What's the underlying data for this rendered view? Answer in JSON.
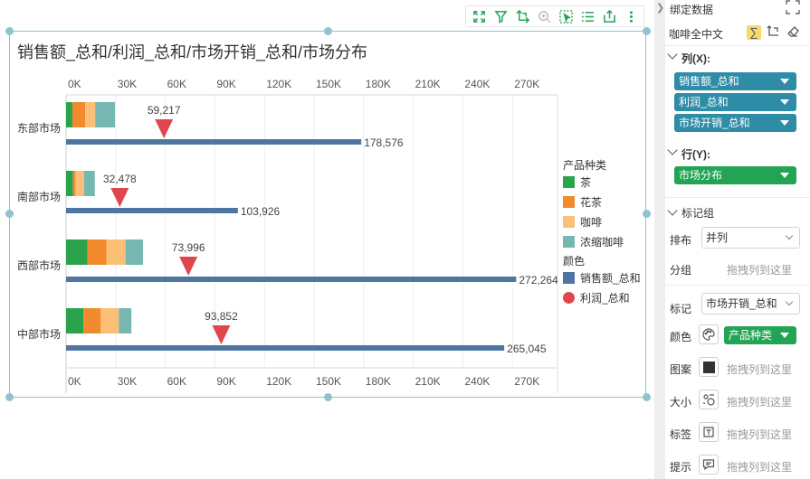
{
  "chart": {
    "title": "销售额_总和/利润_总和/市场开销_总和/市场分布",
    "legend_title_type": "产品种类",
    "legend_title_color": "颜色"
  },
  "chart_data": {
    "type": "bar",
    "orientation": "horizontal",
    "categories": [
      "东部市场",
      "南部市场",
      "西部市场",
      "中部市场"
    ],
    "x_ticks": [
      "0K",
      "30K",
      "60K",
      "90K",
      "120K",
      "150K",
      "180K",
      "210K",
      "240K",
      "270K"
    ],
    "xlim": [
      0,
      300000
    ],
    "grid": true,
    "legend_position": "right",
    "series": [
      {
        "name": "销售额_总和",
        "mark": "bar",
        "color": "#4e76a0",
        "values": [
          178576,
          103926,
          272264,
          265045
        ],
        "labels": [
          "178,576",
          "103,926",
          "272,264",
          "265,045"
        ]
      },
      {
        "name": "利润_总和",
        "mark": "triangle",
        "color": "#e0464e",
        "values": [
          59217,
          32478,
          73996,
          93852
        ],
        "labels": [
          "59,217",
          "32,478",
          "73,996",
          "93,852"
        ]
      }
    ],
    "stacked_series": {
      "field": "市场开销_总和",
      "segments": [
        {
          "name": "茶",
          "color": "#2ba24c",
          "values": [
            3800,
            4200,
            13000,
            10500
          ]
        },
        {
          "name": "花茶",
          "color": "#f08a2c",
          "values": [
            7800,
            1500,
            11500,
            10500
          ]
        },
        {
          "name": "咖啡",
          "color": "#fbbf78",
          "values": [
            6000,
            5200,
            11500,
            11000
          ]
        },
        {
          "name": "浓缩咖啡",
          "color": "#77b7b2",
          "values": [
            12000,
            6500,
            10500,
            7500
          ]
        }
      ]
    }
  },
  "toolbar": {
    "icons": [
      "fullscreen-icon",
      "filter-icon",
      "swap-axes-icon",
      "zoom-icon",
      "select-icon",
      "list-icon",
      "export-icon",
      "more-icon"
    ]
  },
  "panel": {
    "title": "绑定数据",
    "dataset": "咖啡全中文",
    "columns_label": "列(X):",
    "columns": [
      "销售额_总和",
      "利润_总和",
      "市场开销_总和"
    ],
    "rows_label": "行(Y):",
    "rows": [
      "市场分布"
    ],
    "mark_group_label": "标记组",
    "layout_label": "排布",
    "layout_value": "并列",
    "group_label": "分组",
    "drop_hint": "拖拽列到这里",
    "mark_label": "标记",
    "mark_value": "市场开销_总和",
    "color_label": "颜色",
    "color_value": "产品种类",
    "pattern_label": "图案",
    "size_label": "大小",
    "label_label": "标签",
    "tip_label": "提示"
  }
}
